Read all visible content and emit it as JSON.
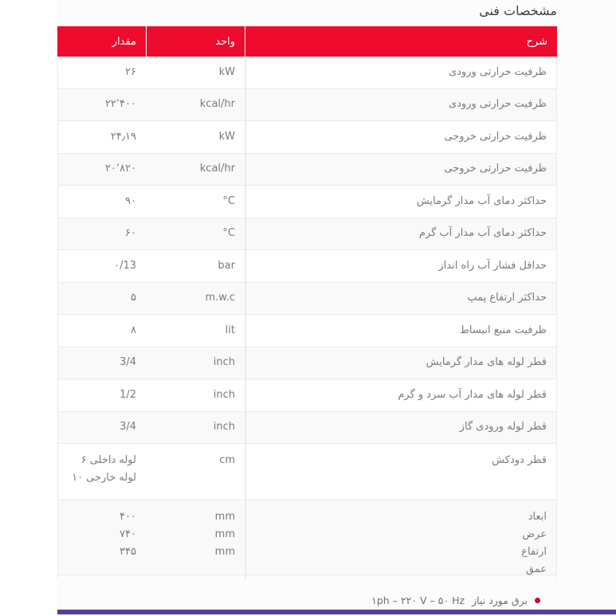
{
  "page": {
    "title": "مشخصات فنی"
  },
  "colors": {
    "header_bg": "#ee0b2e",
    "accent_bar": "#55418f",
    "bullet": "#d10a2f",
    "stripe": "#f9f9f9"
  },
  "table": {
    "headers": {
      "desc": "شرح",
      "unit": "واحد",
      "value": "مقدار"
    },
    "rows": [
      {
        "desc": "ظرفیت حرارتی ورودی",
        "unit": "kW",
        "value": "۲۶"
      },
      {
        "desc": "ظرفیت حرارتی ورودی",
        "unit": "kcal/hr",
        "value": "۲۲٬۴۰۰"
      },
      {
        "desc": "ظرفیت حرارتی خروجی",
        "unit": "kW",
        "value": "۲۴٫۱۹"
      },
      {
        "desc": "ظرفیت حرارتی خروجی",
        "unit": "kcal/hr",
        "value": "۲۰٬۸۲۰"
      },
      {
        "desc": "حداکثر دمای آب مدار گرمایش",
        "unit": "°C",
        "value": "۹۰"
      },
      {
        "desc": "حداکثر دمای آب مدار آب گرم",
        "unit": "°C",
        "value": "۶۰"
      },
      {
        "desc": "حداقل فشار آب راه انداز",
        "unit": "bar",
        "value": "۰/13"
      },
      {
        "desc": "حداکثر ارتفاع پمپ",
        "unit": "m.w.c",
        "value": "۵"
      },
      {
        "desc": "ظرفیت منبع انبساط",
        "unit": "lit",
        "value": "۸"
      },
      {
        "desc": "قطر لوله های مدار گرمایش",
        "unit": "inch",
        "value": "3/4"
      },
      {
        "desc": "قطر لوله های مدار آب سرد و گرم",
        "unit": "inch",
        "value": "1/2"
      },
      {
        "desc": "قطر لوله ورودی گاز",
        "unit": "inch",
        "value": "3/4"
      },
      {
        "desc": "قطر دودکش",
        "unit": "cm",
        "value_parts": [
          {
            "num": "۶",
            "text": "لوله داخلی"
          },
          {
            "num": "۱۰",
            "text": "لوله خارجی"
          }
        ]
      },
      {
        "desc_lines": [
          "ابعاد",
          "عرض",
          "ارتفاع",
          "عمق"
        ],
        "unit_lines": [
          "mm",
          "mm",
          "mm"
        ],
        "value_lines": [
          "۴۰۰",
          "۷۴۰",
          "۳۴۵"
        ]
      }
    ]
  },
  "footer": {
    "note_label": "برق مورد نیاز",
    "note_value": "۱ph – ۲۲۰ V – ۵۰ Hz"
  }
}
